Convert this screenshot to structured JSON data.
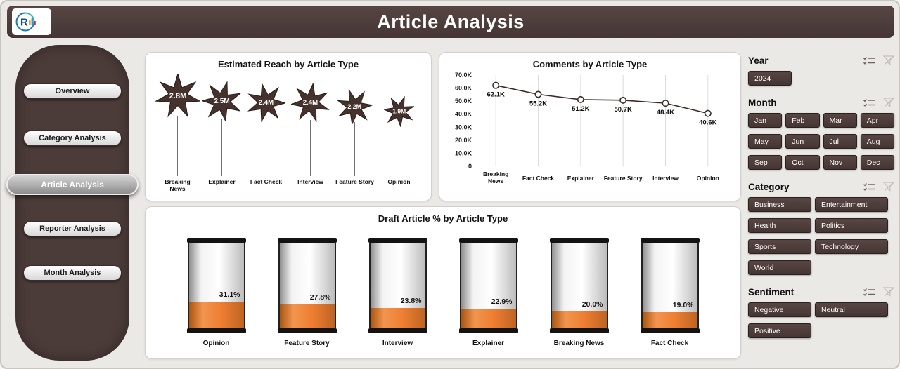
{
  "app": {
    "title": "Article Analysis",
    "logo_letter": "R"
  },
  "sidebar": {
    "items": [
      {
        "label": "Overview",
        "active": false
      },
      {
        "label": "Category Analysis",
        "active": false
      },
      {
        "label": "Article Analysis",
        "active": true
      },
      {
        "label": "Reporter Analysis",
        "active": false
      },
      {
        "label": "Month Analysis",
        "active": false
      }
    ]
  },
  "chart_data": [
    {
      "type": "pictorial-bar",
      "title": "Estimated Reach by Article Type",
      "marker": "star-7-point",
      "marker_color": "#46322c",
      "categories": [
        "Breaking News",
        "Explainer",
        "Fact Check",
        "Interview",
        "Feature Story",
        "Opinion"
      ],
      "values": [
        2.8,
        2.5,
        2.4,
        2.4,
        2.2,
        1.9
      ],
      "unit": "M",
      "value_labels": [
        "2.8M",
        "2.5M",
        "2.4M",
        "2.4M",
        "2.2M",
        "1.9M"
      ],
      "wrap_labels": [
        "Breaking News"
      ]
    },
    {
      "type": "line",
      "title": "Comments by Article Type",
      "marker": "open-circle",
      "line_color": "#3a2a26",
      "categories": [
        "Breaking News",
        "Fact Check",
        "Explainer",
        "Feature Story",
        "Interview",
        "Opinion"
      ],
      "values": [
        62.1,
        55.2,
        51.2,
        50.7,
        48.4,
        40.6
      ],
      "unit": "K",
      "value_labels": [
        "62.1K",
        "55.2K",
        "51.2K",
        "50.7K",
        "48.4K",
        "40.6K"
      ],
      "ylim": [
        0,
        70
      ],
      "ytick_labels": [
        "70.0K",
        "60.0K",
        "50.0K",
        "40.0K",
        "30.0K",
        "20.0K",
        "10.0K",
        "0"
      ],
      "grid": "vertical-category-lines",
      "wrap_labels": [
        "Breaking News"
      ]
    },
    {
      "type": "gauge-battery",
      "title": "Draft Article % by Article Type",
      "fill_color": "#ed7d31",
      "categories": [
        "Opinion",
        "Feature Story",
        "Interview",
        "Explainer",
        "Breaking News",
        "Fact Check"
      ],
      "values": [
        31.1,
        27.8,
        23.8,
        22.9,
        20.0,
        19.0
      ],
      "unit": "%",
      "value_labels": [
        "31.1%",
        "27.8%",
        "23.8%",
        "22.9%",
        "20.0%",
        "19.0%"
      ],
      "ylim": [
        0,
        100
      ]
    }
  ],
  "filters": {
    "year": {
      "label": "Year",
      "options": [
        "2024"
      ]
    },
    "month": {
      "label": "Month",
      "options": [
        "Jan",
        "Feb",
        "Mar",
        "Apr",
        "May",
        "Jun",
        "Jul",
        "Aug",
        "Sep",
        "Oct",
        "Nov",
        "Dec"
      ]
    },
    "category": {
      "label": "Category",
      "options": [
        "Business",
        "Entertainment",
        "Health",
        "Politics",
        "Sports",
        "Technology",
        "World"
      ]
    },
    "sentiment": {
      "label": "Sentiment",
      "options": [
        "Negative",
        "Neutral",
        "Positive"
      ]
    }
  },
  "icons": {
    "slicer_header": [
      "checklist-icon",
      "clear-filter-icon"
    ],
    "logo": "app-logo"
  },
  "colors": {
    "header_bg": "#4b3b39",
    "sidebar_bg": "#4b3b39",
    "slicer_button_bg": "#4a3a37",
    "accent_orange": "#ed7d31",
    "star_brown": "#46322c",
    "line_brown": "#3a2a26",
    "card_bg": "#ffffff",
    "page_bg": "#ebe9e6"
  }
}
